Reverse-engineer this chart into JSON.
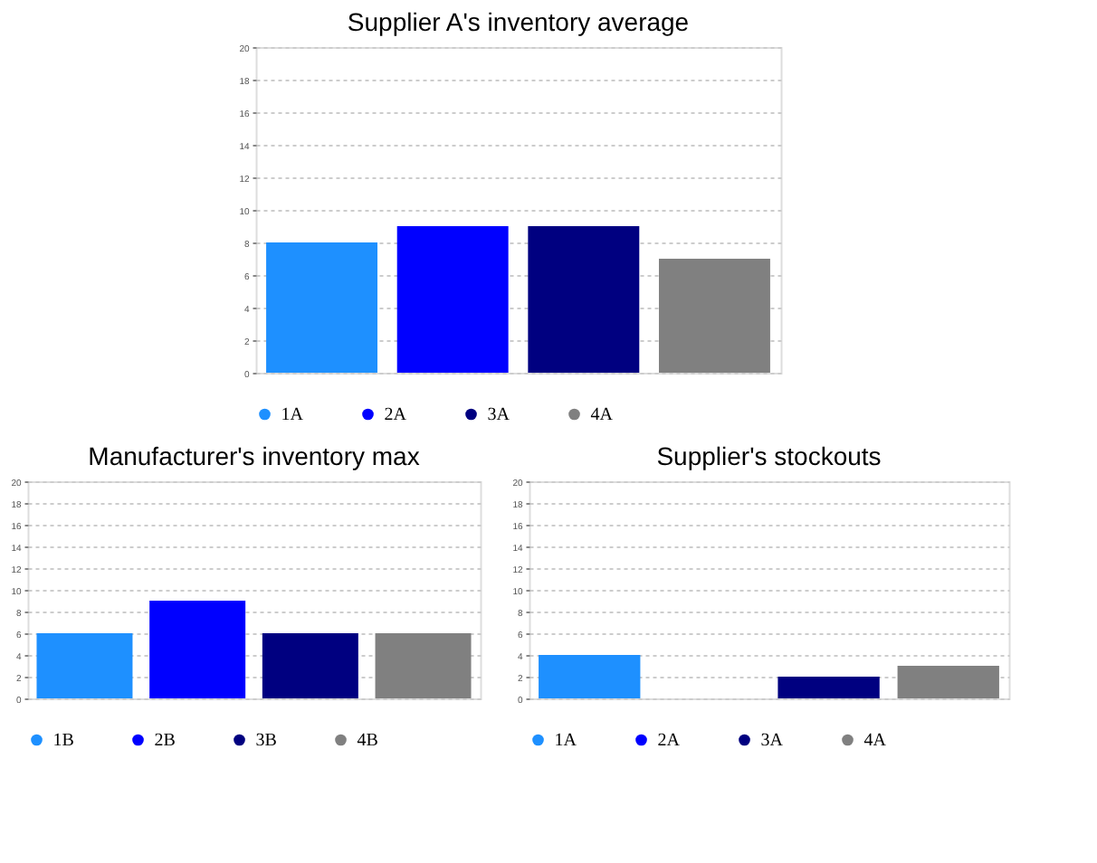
{
  "chart_data": [
    {
      "type": "bar",
      "title": "Supplier A's inventory average",
      "categories": [
        null
      ],
      "ylim": [
        0,
        20
      ],
      "yticks": [
        0,
        2,
        4,
        6,
        8,
        10,
        12,
        14,
        16,
        18,
        20
      ],
      "grid": "y",
      "legend": "bottom",
      "series": [
        {
          "name": "1A",
          "color": "#1e90ff",
          "values": [
            8
          ]
        },
        {
          "name": "2A",
          "color": "#0000ff",
          "values": [
            9
          ]
        },
        {
          "name": "3A",
          "color": "#000080",
          "values": [
            9
          ]
        },
        {
          "name": "4A",
          "color": "#808080",
          "values": [
            7
          ]
        }
      ]
    },
    {
      "type": "bar",
      "title": "Manufacturer's inventory max",
      "categories": [
        null
      ],
      "ylim": [
        0,
        20
      ],
      "yticks": [
        0,
        2,
        4,
        6,
        8,
        10,
        12,
        14,
        16,
        18,
        20
      ],
      "grid": "y",
      "legend": "bottom",
      "series": [
        {
          "name": "1B",
          "color": "#1e90ff",
          "values": [
            6
          ]
        },
        {
          "name": "2B",
          "color": "#0000ff",
          "values": [
            9
          ]
        },
        {
          "name": "3B",
          "color": "#000080",
          "values": [
            6
          ]
        },
        {
          "name": "4B",
          "color": "#808080",
          "values": [
            6
          ]
        }
      ]
    },
    {
      "type": "bar",
      "title": "Supplier's stockouts",
      "categories": [
        null
      ],
      "ylim": [
        0,
        20
      ],
      "yticks": [
        0,
        2,
        4,
        6,
        8,
        10,
        12,
        14,
        16,
        18,
        20
      ],
      "grid": "y",
      "legend": "bottom",
      "series": [
        {
          "name": "1A",
          "color": "#1e90ff",
          "values": [
            4
          ]
        },
        {
          "name": "2A",
          "color": "#0000ff",
          "values": [
            0
          ]
        },
        {
          "name": "3A",
          "color": "#000080",
          "values": [
            2
          ]
        },
        {
          "name": "4A",
          "color": "#808080",
          "values": [
            3
          ]
        }
      ]
    }
  ]
}
